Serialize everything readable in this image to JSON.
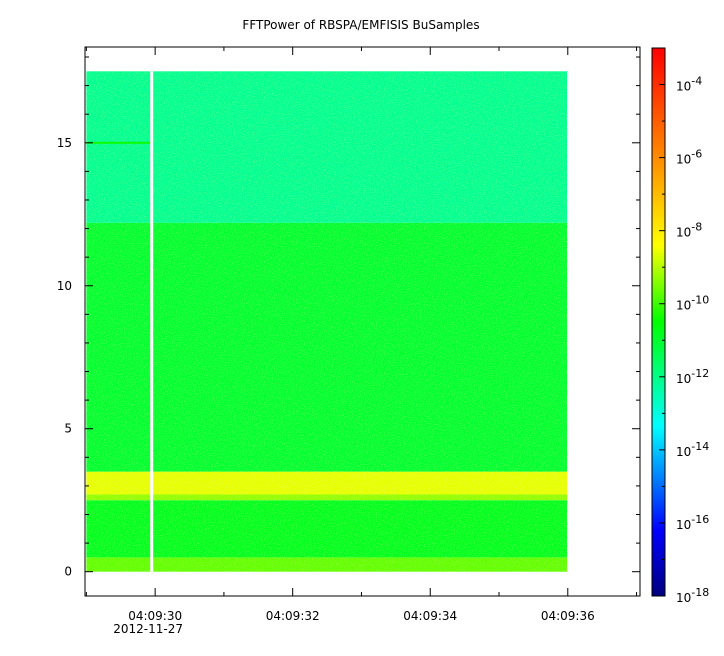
{
  "chart_data": {
    "type": "heatmap",
    "title": "FFTPower of RBSPA/EMFISIS  BuSamples",
    "xlabel": "",
    "ylabel": "",
    "x_ticks": [
      {
        "value": 30,
        "label": "04:09:30",
        "sublabel": "2012-11-27"
      },
      {
        "value": 32,
        "label": "04:09:32",
        "sublabel": ""
      },
      {
        "value": 34,
        "label": "04:09:34",
        "sublabel": ""
      },
      {
        "value": 36,
        "label": "04:09:36",
        "sublabel": ""
      }
    ],
    "x_minor_ticks": [
      29,
      31,
      33,
      35,
      37
    ],
    "xlim": [
      28.98,
      37.05
    ],
    "y_ticks": [
      {
        "value": 0,
        "label": "0"
      },
      {
        "value": 5,
        "label": "5"
      },
      {
        "value": 10,
        "label": "10"
      },
      {
        "value": 15,
        "label": "15"
      }
    ],
    "ylim": [
      -0.85,
      18.35
    ],
    "data_extent": {
      "x": [
        29.0,
        35.99
      ],
      "y": [
        0,
        17.5
      ]
    },
    "gap_x": 29.95,
    "colorbar": {
      "scale": "log",
      "range": [
        1e-18,
        0.001
      ],
      "ticks": [
        {
          "value": -18,
          "label": "10",
          "exp": "-18"
        },
        {
          "value": -16,
          "label": "10",
          "exp": "-16"
        },
        {
          "value": -14,
          "label": "10",
          "exp": "-14"
        },
        {
          "value": -12,
          "label": "10",
          "exp": "-12"
        },
        {
          "value": -10,
          "label": "10",
          "exp": "-10"
        },
        {
          "value": -8,
          "label": "10",
          "exp": "-8"
        },
        {
          "value": -6,
          "label": "10",
          "exp": "-6"
        },
        {
          "value": -4,
          "label": "10",
          "exp": "-4"
        }
      ]
    },
    "bands": [
      {
        "y": [
          0,
          0.5
        ],
        "log_power": -9.7
      },
      {
        "y": [
          0.5,
          2.5
        ],
        "log_power": -10.8
      },
      {
        "y": [
          2.5,
          2.7
        ],
        "log_power": -9.3
      },
      {
        "y": [
          2.7,
          3.5
        ],
        "log_power": -8.6
      },
      {
        "y": [
          3.5,
          12.2
        ],
        "log_power": -11.0
      },
      {
        "y": [
          12.2,
          17.5
        ],
        "log_power": -12.1
      }
    ],
    "features": [
      {
        "name": "narrowband line",
        "y": 15.0,
        "x": [
          29.0,
          29.95
        ],
        "log_power": -10.4
      }
    ]
  }
}
